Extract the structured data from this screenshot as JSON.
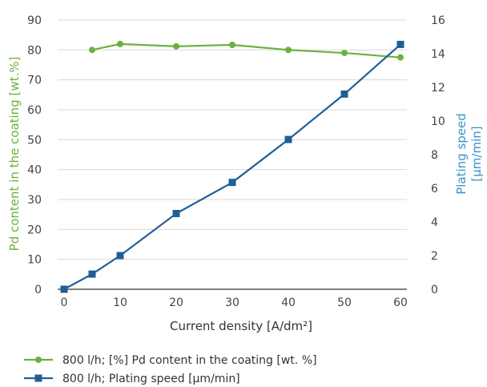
{
  "chart_data": {
    "type": "line",
    "xlabel": "Current density [A/dm²]",
    "ylabel_left": "Pd content in the coating [wt.%]",
    "ylabel_right_line1": "Plating speed",
    "ylabel_right_line2": "[µm/min]",
    "xlim": [
      0,
      60
    ],
    "xticks": [
      0,
      10,
      20,
      30,
      40,
      50,
      60
    ],
    "ylim_left": [
      0,
      90
    ],
    "yticks_left": [
      0,
      10,
      20,
      30,
      40,
      50,
      60,
      70,
      80,
      90
    ],
    "ylim_right": [
      0,
      16
    ],
    "yticks_right": [
      0,
      2,
      4,
      6,
      8,
      10,
      12,
      14,
      16
    ],
    "grid": "horizontal",
    "legend_position": "bottom-left",
    "series": [
      {
        "name": "800 l/h; [%] Pd content in the coating [wt. %]",
        "axis": "left",
        "color": "#6ab23e",
        "marker": "circle",
        "x": [
          5,
          10,
          20,
          30,
          40,
          50,
          60
        ],
        "values": [
          80,
          82,
          81.2,
          81.7,
          80,
          79,
          77.5
        ]
      },
      {
        "name": "800 l/h; Plating speed [µm/min]",
        "axis": "right",
        "color": "#1f5f97",
        "marker": "square",
        "x": [
          0,
          5,
          10,
          20,
          30,
          40,
          50,
          60
        ],
        "values": [
          0,
          0.9,
          2.0,
          4.5,
          6.35,
          8.9,
          11.6,
          14.55
        ]
      }
    ]
  }
}
